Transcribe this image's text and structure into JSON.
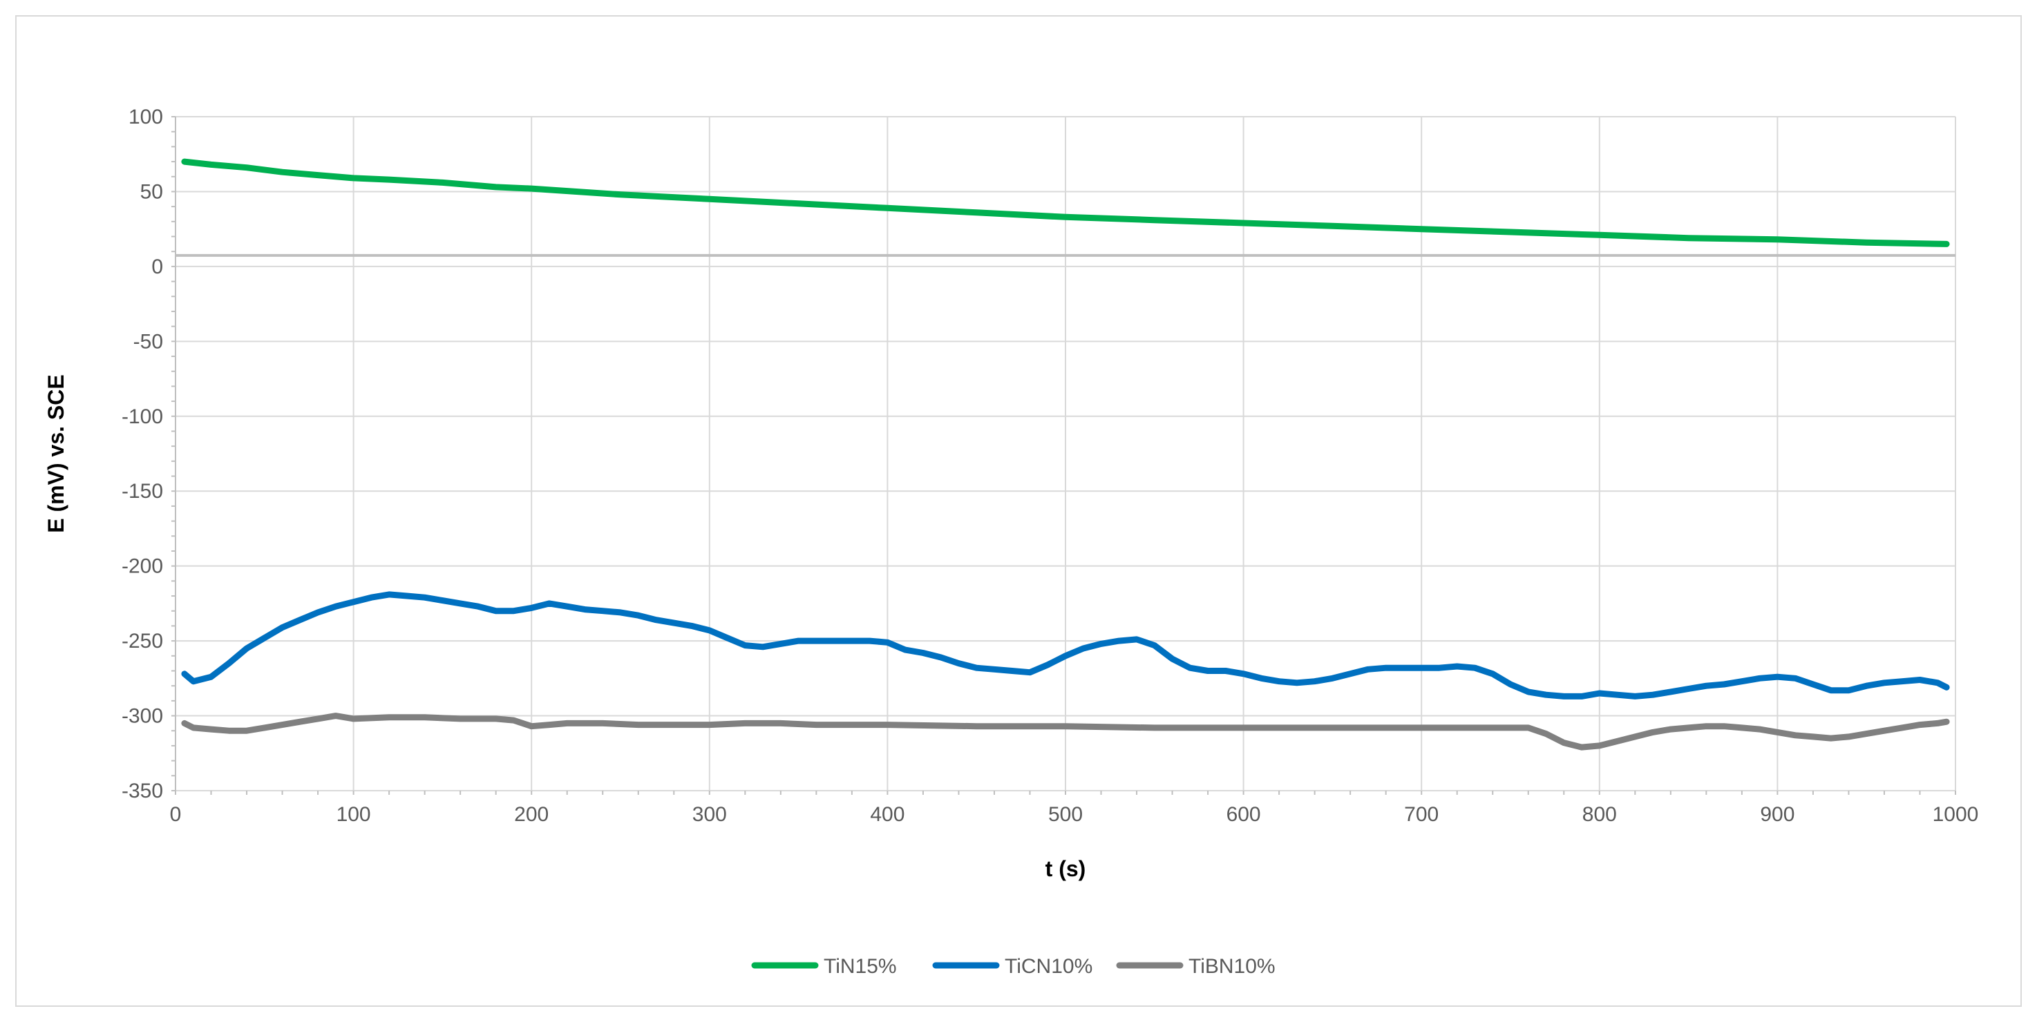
{
  "chart_data": {
    "type": "line",
    "xlabel": "t (s)",
    "ylabel": "E (mV) vs. SCE",
    "xlim": [
      0,
      1000
    ],
    "ylim": [
      -350,
      100
    ],
    "x_ticks": [
      0,
      100,
      200,
      300,
      400,
      500,
      600,
      700,
      800,
      900,
      1000
    ],
    "y_ticks": [
      100,
      50,
      0,
      -50,
      -100,
      -150,
      -200,
      -250,
      -300,
      -350
    ],
    "grid": true,
    "legend_position": "bottom",
    "series": [
      {
        "name": "TiN15%",
        "color": "#00b050",
        "x": [
          5,
          20,
          40,
          60,
          80,
          100,
          120,
          150,
          180,
          200,
          250,
          300,
          350,
          400,
          450,
          500,
          550,
          600,
          650,
          700,
          750,
          800,
          850,
          900,
          950,
          995
        ],
        "y": [
          70,
          68,
          66,
          63,
          61,
          59,
          58,
          56,
          53,
          52,
          48,
          45,
          42,
          39,
          36,
          33,
          31,
          29,
          27,
          25,
          23,
          21,
          19,
          18,
          16,
          15
        ]
      },
      {
        "name": "TiCN10%",
        "color": "#0070c0",
        "x": [
          5,
          10,
          20,
          30,
          40,
          50,
          60,
          70,
          80,
          90,
          100,
          110,
          120,
          130,
          140,
          150,
          160,
          170,
          180,
          190,
          200,
          210,
          220,
          230,
          240,
          250,
          260,
          270,
          280,
          290,
          300,
          310,
          320,
          330,
          340,
          350,
          360,
          370,
          380,
          390,
          400,
          410,
          420,
          430,
          440,
          450,
          460,
          470,
          480,
          490,
          500,
          510,
          520,
          530,
          540,
          550,
          560,
          570,
          580,
          590,
          600,
          610,
          620,
          630,
          640,
          650,
          660,
          670,
          680,
          690,
          700,
          710,
          720,
          730,
          740,
          750,
          760,
          770,
          780,
          790,
          800,
          810,
          820,
          830,
          840,
          850,
          860,
          870,
          880,
          890,
          900,
          910,
          920,
          930,
          940,
          950,
          960,
          970,
          980,
          990,
          995
        ],
        "y": [
          -272,
          -277,
          -274,
          -265,
          -255,
          -248,
          -241,
          -236,
          -231,
          -227,
          -224,
          -221,
          -219,
          -220,
          -221,
          -223,
          -225,
          -227,
          -230,
          -230,
          -228,
          -225,
          -227,
          -229,
          -230,
          -231,
          -233,
          -236,
          -238,
          -240,
          -243,
          -248,
          -253,
          -254,
          -252,
          -250,
          -250,
          -250,
          -250,
          -250,
          -251,
          -256,
          -258,
          -261,
          -265,
          -268,
          -269,
          -270,
          -271,
          -266,
          -260,
          -255,
          -252,
          -250,
          -249,
          -253,
          -262,
          -268,
          -270,
          -270,
          -272,
          -275,
          -277,
          -278,
          -277,
          -275,
          -272,
          -269,
          -268,
          -268,
          -268,
          -268,
          -267,
          -268,
          -272,
          -279,
          -284,
          -286,
          -287,
          -287,
          -285,
          -286,
          -287,
          -286,
          -284,
          -282,
          -280,
          -279,
          -277,
          -275,
          -274,
          -275,
          -279,
          -283,
          -283,
          -280,
          -278,
          -277,
          -276,
          -278,
          -281
        ]
      },
      {
        "name": "TiBN10%",
        "color": "#808080",
        "x": [
          5,
          10,
          20,
          30,
          40,
          50,
          60,
          70,
          80,
          90,
          100,
          120,
          140,
          160,
          180,
          190,
          200,
          210,
          220,
          240,
          260,
          280,
          300,
          320,
          340,
          360,
          380,
          400,
          450,
          500,
          550,
          600,
          650,
          700,
          740,
          760,
          770,
          780,
          790,
          800,
          810,
          820,
          830,
          840,
          850,
          860,
          870,
          880,
          890,
          900,
          910,
          920,
          930,
          940,
          950,
          960,
          970,
          980,
          990,
          995
        ],
        "y": [
          -305,
          -308,
          -309,
          -310,
          -310,
          -308,
          -306,
          -304,
          -302,
          -300,
          -302,
          -301,
          -301,
          -302,
          -302,
          -303,
          -307,
          -306,
          -305,
          -305,
          -306,
          -306,
          -306,
          -305,
          -305,
          -306,
          -306,
          -306,
          -307,
          -307,
          -308,
          -308,
          -308,
          -308,
          -308,
          -308,
          -312,
          -318,
          -321,
          -320,
          -317,
          -314,
          -311,
          -309,
          -308,
          -307,
          -307,
          -308,
          -309,
          -311,
          -313,
          -314,
          -315,
          -314,
          -312,
          -310,
          -308,
          -306,
          -305,
          -304
        ]
      }
    ]
  }
}
